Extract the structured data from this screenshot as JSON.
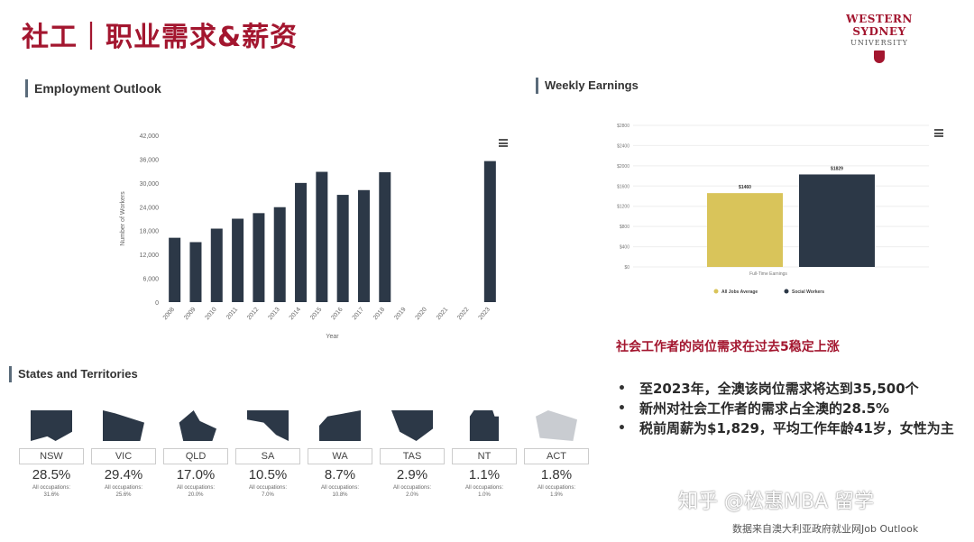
{
  "page": {
    "title": "社工｜职业需求&薪资",
    "logo": {
      "line1": "WESTERN SYDNEY",
      "line2": "UNIVERSITY"
    }
  },
  "employment": {
    "heading": "Employment Outlook",
    "menu_icon": "hamburger-menu-icon"
  },
  "earnings": {
    "heading": "Weekly Earnings",
    "menu_icon": "hamburger-menu-icon"
  },
  "states": {
    "heading": "States and Territories",
    "occ_label": "All occupations:",
    "items": [
      {
        "name": "NSW",
        "share": "28.5%",
        "all_occ": "31.6%"
      },
      {
        "name": "VIC",
        "share": "29.4%",
        "all_occ": "25.6%"
      },
      {
        "name": "QLD",
        "share": "17.0%",
        "all_occ": "20.0%"
      },
      {
        "name": "SA",
        "share": "10.5%",
        "all_occ": "7.0%"
      },
      {
        "name": "WA",
        "share": "8.7%",
        "all_occ": "10.8%"
      },
      {
        "name": "TAS",
        "share": "2.9%",
        "all_occ": "2.0%"
      },
      {
        "name": "NT",
        "share": "1.1%",
        "all_occ": "1.0%"
      },
      {
        "name": "ACT",
        "share": "1.8%",
        "all_occ": "1.9%"
      }
    ]
  },
  "summary": {
    "headline": "社会工作者的岗位需求在过去5稳定上涨",
    "bullets": [
      "至2023年，全澳该岗位需求将达到35,500个",
      "新州对社会工作者的需求占全澳的28.5%",
      "税前周薪为$1,829，平均工作年龄41岁，女性为主"
    ]
  },
  "footer": {
    "watermark": "知乎 @松惠MBA 留学",
    "source": "数据来自澳大利亚政府就业网Job Outlook"
  },
  "colors": {
    "brand_red": "#a3162f",
    "bar_navy": "#2c3847",
    "bar_gold": "#d9c45a"
  },
  "chart_data": [
    {
      "type": "bar",
      "title": "",
      "xlabel": "Year",
      "ylabel": "Number of Workers",
      "ylim": [
        0,
        42000
      ],
      "yticks": [
        "0",
        "6,000",
        "12,000",
        "18,000",
        "24,000",
        "30,000",
        "36,000",
        "42,000"
      ],
      "categories": [
        "2008",
        "2009",
        "2010",
        "2011",
        "2012",
        "2013",
        "2014",
        "2015",
        "2016",
        "2017",
        "2018",
        "2019",
        "2020",
        "2021",
        "2022",
        "2023"
      ],
      "values": [
        16200,
        15100,
        18500,
        21000,
        22400,
        23900,
        30000,
        32800,
        27000,
        28200,
        32700,
        null,
        null,
        null,
        null,
        35500
      ],
      "grid": false
    },
    {
      "type": "bar",
      "title": "",
      "category": "Full-Time Earnings",
      "ylim": [
        0,
        2800
      ],
      "yticks": [
        "$0",
        "$400",
        "$800",
        "$1200",
        "$1600",
        "$2000",
        "$2400",
        "$2800"
      ],
      "series": [
        {
          "name": "All Jobs Average",
          "value": 1460,
          "label": "$1460"
        },
        {
          "name": "Social Workers",
          "value": 1829,
          "label": "$1829"
        }
      ],
      "legend": "bottom"
    }
  ]
}
